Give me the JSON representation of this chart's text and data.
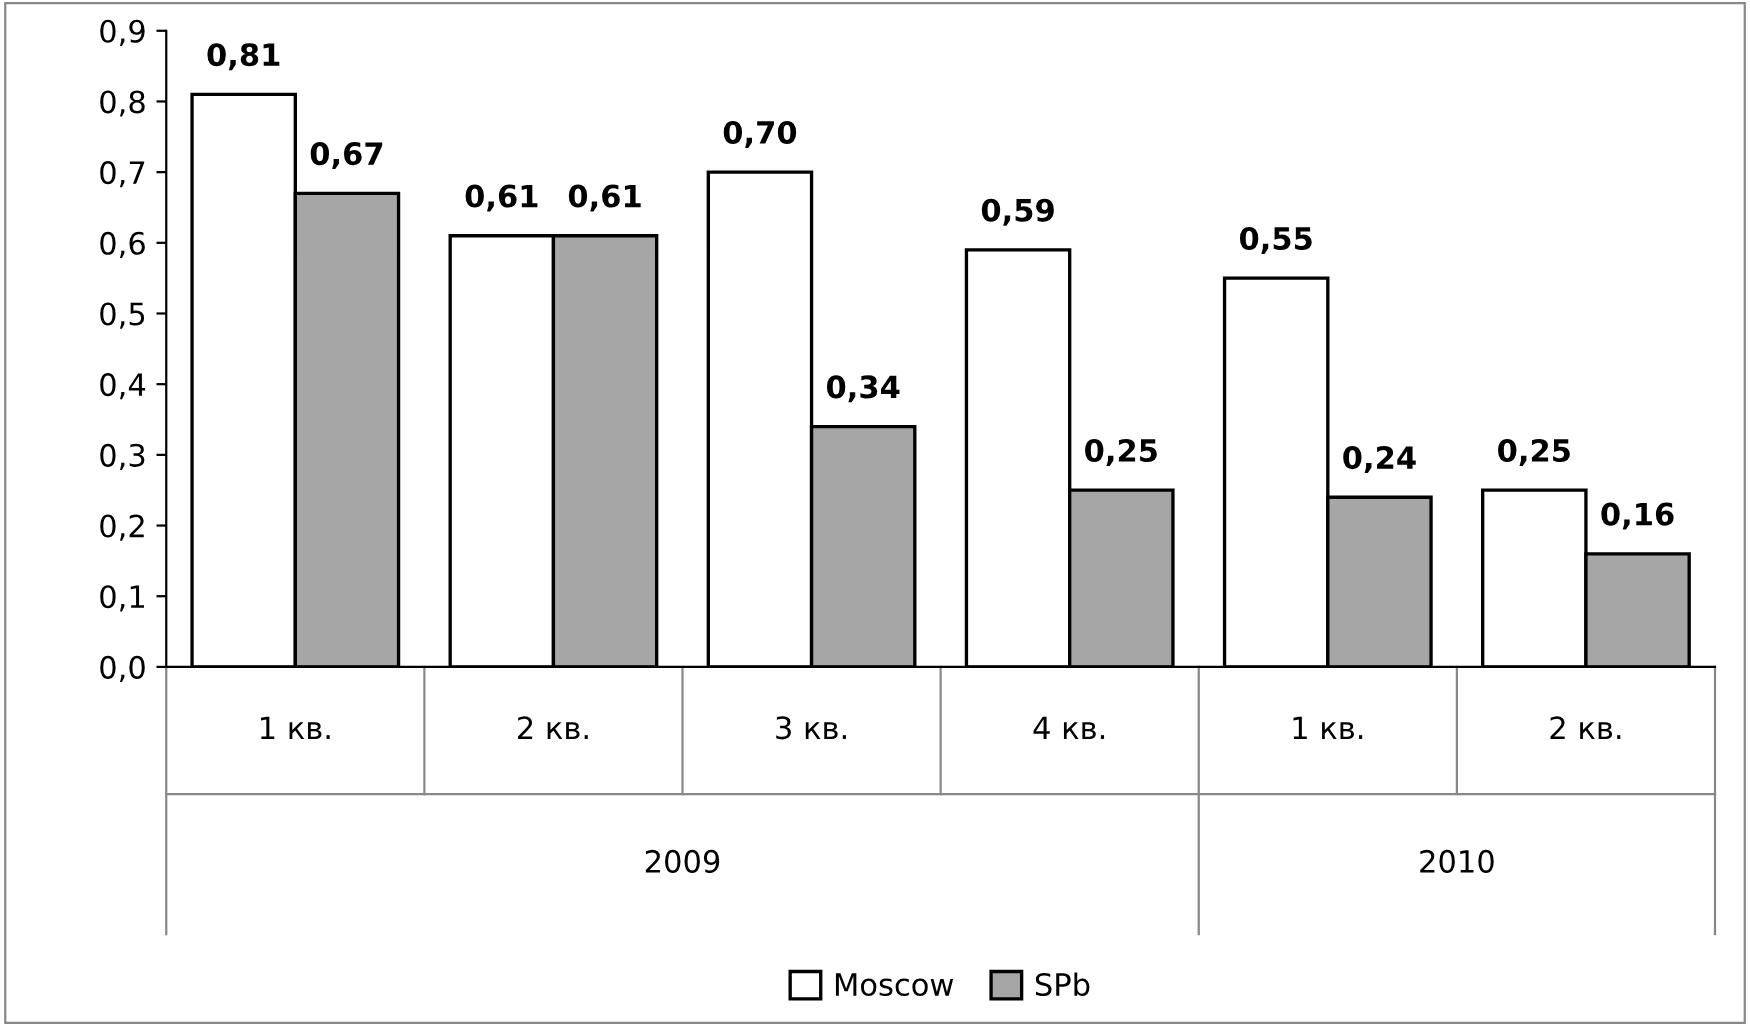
{
  "chart_data": {
    "type": "bar",
    "categories": [
      "1 кв.",
      "2 кв.",
      "3 кв.",
      "4 кв.",
      "1 кв.",
      "2 кв."
    ],
    "series": [
      {
        "name": "Moscow",
        "color": "#ffffff",
        "values": [
          0.81,
          0.61,
          0.7,
          0.59,
          0.55,
          0.25
        ],
        "value_labels": [
          "0,81",
          "0,61",
          "0,70",
          "0,59",
          "0,55",
          "0,25"
        ]
      },
      {
        "name": "SPb",
        "color": "#a6a6a6",
        "values": [
          0.67,
          0.61,
          0.34,
          0.25,
          0.24,
          0.16
        ],
        "value_labels": [
          "0,67",
          "0,61",
          "0,34",
          "0,25",
          "0,24",
          "0,16"
        ]
      }
    ],
    "annotations": [
      "2009",
      "2010"
    ],
    "ylim": [
      0,
      0.9
    ],
    "yticks": [
      {
        "value": 0,
        "label": "0,0"
      },
      {
        "value": 0.1,
        "label": "0,1"
      },
      {
        "value": 0.2,
        "label": "0,2"
      },
      {
        "value": 0.3,
        "label": "0,3"
      },
      {
        "value": 0.4,
        "label": "0,4"
      },
      {
        "value": 0.5,
        "label": "0,5"
      },
      {
        "value": 0.6,
        "label": "0,6"
      },
      {
        "value": 0.7,
        "label": "0,7"
      },
      {
        "value": 0.8,
        "label": "0,8"
      },
      {
        "value": 0.9,
        "label": "0,9"
      }
    ],
    "grid": false,
    "legend": "bottom"
  }
}
